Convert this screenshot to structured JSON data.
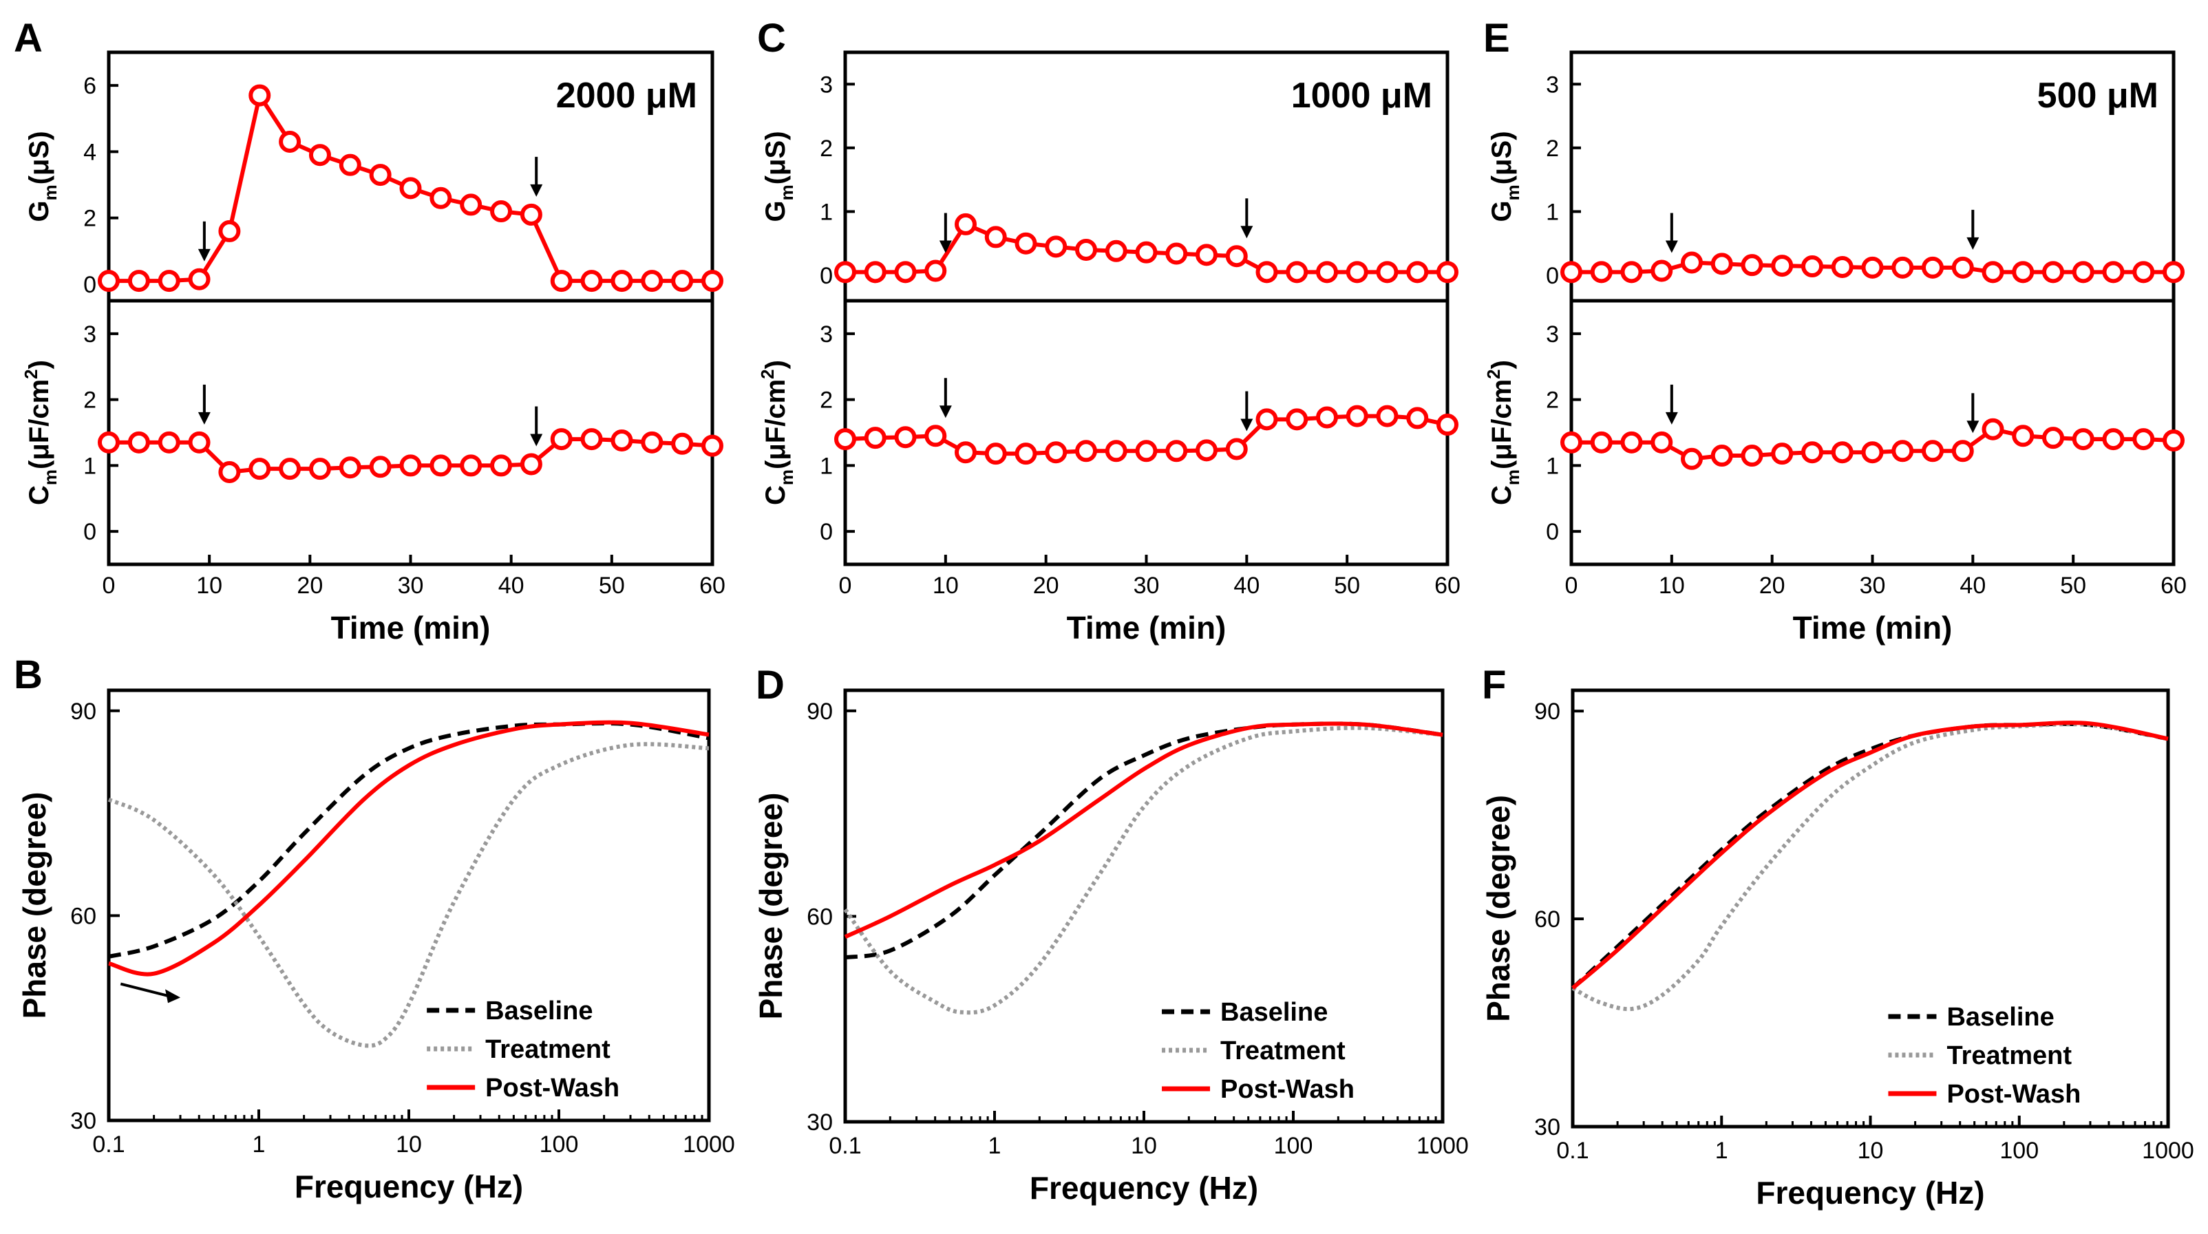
{
  "colors": {
    "post_wash": "#ff0000",
    "baseline": "#000000",
    "treatment": "#999999"
  },
  "chart_data": [
    {
      "panel": "A",
      "type": "line",
      "concentration": "2000 μM",
      "xlabel": "Time (min)",
      "xlim": [
        0,
        60
      ],
      "xticks": [
        "0",
        "10",
        "20",
        "30",
        "40",
        "50",
        "60"
      ],
      "top": {
        "ylabel": "Gm(μS)",
        "ylabel_main": "G",
        "ylabel_sub": "m",
        "ylabel_rest": "(μS)",
        "ylim": [
          -0.5,
          7
        ],
        "yticks": [
          "0",
          "2",
          "4",
          "6"
        ],
        "x": [
          0,
          3,
          6,
          9,
          12,
          15,
          18,
          21,
          24,
          27,
          30,
          33,
          36,
          39,
          42,
          45,
          48,
          51,
          54,
          57,
          60
        ],
        "values": [
          0.1,
          0.1,
          0.1,
          0.15,
          1.6,
          5.7,
          4.3,
          3.9,
          3.6,
          3.3,
          2.9,
          2.6,
          2.4,
          2.2,
          2.1,
          0.1,
          0.1,
          0.1,
          0.1,
          0.1,
          0.1
        ],
        "arrows_at": [
          9.5,
          42.5
        ]
      },
      "bottom": {
        "ylabel": "Cm(μF/cm2)",
        "ylabel_main": "C",
        "ylabel_sub": "m",
        "ylabel_rest": "(μF/cm",
        "ylabel_sup": "2",
        "ylabel_end": ")",
        "ylim": [
          -0.5,
          3.5
        ],
        "yticks": [
          "0",
          "1",
          "2",
          "3"
        ],
        "x": [
          0,
          3,
          6,
          9,
          12,
          15,
          18,
          21,
          24,
          27,
          30,
          33,
          36,
          39,
          42,
          45,
          48,
          51,
          54,
          57,
          60
        ],
        "values": [
          1.35,
          1.35,
          1.35,
          1.35,
          0.9,
          0.95,
          0.95,
          0.95,
          0.97,
          0.98,
          1.0,
          1.0,
          1.0,
          1.0,
          1.02,
          1.4,
          1.4,
          1.38,
          1.35,
          1.33,
          1.3
        ],
        "arrows_at": [
          9.5,
          42.5
        ]
      }
    },
    {
      "panel": "C",
      "type": "line",
      "concentration": "1000 μM",
      "xlabel": "Time (min)",
      "xlim": [
        0,
        60
      ],
      "xticks": [
        "0",
        "10",
        "20",
        "30",
        "40",
        "50",
        "60"
      ],
      "top": {
        "ylabel": "Gm(μS)",
        "ylabel_main": "G",
        "ylabel_sub": "m",
        "ylabel_rest": "(μS)",
        "ylim": [
          -0.4,
          3.5
        ],
        "yticks": [
          "0",
          "1",
          "2",
          "3"
        ],
        "x": [
          0,
          3,
          6,
          9,
          12,
          15,
          18,
          21,
          24,
          27,
          30,
          33,
          36,
          39,
          42,
          45,
          48,
          51,
          54,
          57,
          60
        ],
        "values": [
          0.05,
          0.05,
          0.05,
          0.07,
          0.8,
          0.6,
          0.5,
          0.45,
          0.4,
          0.38,
          0.36,
          0.34,
          0.32,
          0.3,
          0.05,
          0.05,
          0.05,
          0.05,
          0.05,
          0.05,
          0.05
        ],
        "arrows_at": [
          10,
          40
        ]
      },
      "bottom": {
        "ylabel": "Cm(μF/cm2)",
        "ylabel_main": "C",
        "ylabel_sub": "m",
        "ylabel_rest": "(μF/cm",
        "ylabel_sup": "2",
        "ylabel_end": ")",
        "ylim": [
          -0.5,
          3.5
        ],
        "yticks": [
          "0",
          "1",
          "2",
          "3"
        ],
        "x": [
          0,
          3,
          6,
          9,
          12,
          15,
          18,
          21,
          24,
          27,
          30,
          33,
          36,
          39,
          42,
          45,
          48,
          51,
          54,
          57,
          60
        ],
        "values": [
          1.4,
          1.42,
          1.43,
          1.45,
          1.2,
          1.18,
          1.18,
          1.2,
          1.22,
          1.22,
          1.22,
          1.22,
          1.23,
          1.25,
          1.7,
          1.7,
          1.73,
          1.75,
          1.75,
          1.72,
          1.62
        ],
        "arrows_at": [
          10,
          40
        ]
      }
    },
    {
      "panel": "E",
      "type": "line",
      "concentration": "500 μM",
      "xlabel": "Time (min)",
      "xlim": [
        0,
        60
      ],
      "xticks": [
        "0",
        "10",
        "20",
        "30",
        "40",
        "50",
        "60"
      ],
      "top": {
        "ylabel": "Gm(μS)",
        "ylabel_main": "G",
        "ylabel_sub": "m",
        "ylabel_rest": "(μS)",
        "ylim": [
          -0.4,
          3.5
        ],
        "yticks": [
          "0",
          "1",
          "2",
          "3"
        ],
        "x": [
          0,
          3,
          6,
          9,
          12,
          15,
          18,
          21,
          24,
          27,
          30,
          33,
          36,
          39,
          42,
          45,
          48,
          51,
          54,
          57,
          60
        ],
        "values": [
          0.05,
          0.05,
          0.05,
          0.07,
          0.2,
          0.18,
          0.16,
          0.15,
          0.14,
          0.13,
          0.12,
          0.12,
          0.12,
          0.12,
          0.05,
          0.05,
          0.05,
          0.05,
          0.05,
          0.05,
          0.05
        ],
        "arrows_at": [
          10,
          40
        ]
      },
      "bottom": {
        "ylabel": "Cm(μF/cm2)",
        "ylabel_main": "C",
        "ylabel_sub": "m",
        "ylabel_rest": "(μF/cm",
        "ylabel_sup": "2",
        "ylabel_end": ")",
        "ylim": [
          -0.5,
          3.5
        ],
        "yticks": [
          "0",
          "1",
          "2",
          "3"
        ],
        "x": [
          0,
          3,
          6,
          9,
          12,
          15,
          18,
          21,
          24,
          27,
          30,
          33,
          36,
          39,
          42,
          45,
          48,
          51,
          54,
          57,
          60
        ],
        "values": [
          1.35,
          1.35,
          1.35,
          1.35,
          1.1,
          1.15,
          1.15,
          1.18,
          1.2,
          1.2,
          1.2,
          1.22,
          1.22,
          1.22,
          1.55,
          1.45,
          1.42,
          1.4,
          1.4,
          1.4,
          1.38
        ],
        "arrows_at": [
          10,
          40
        ]
      }
    },
    {
      "panel": "B",
      "type": "line",
      "xscale": "log",
      "xlabel": "Frequency (Hz)",
      "ylabel": "Phase (degree)",
      "xlim": [
        0.1,
        1000
      ],
      "ylim": [
        30,
        93
      ],
      "xticks": [
        "0.1",
        "1",
        "10",
        "100",
        "1000"
      ],
      "yticks": [
        "30",
        "60",
        "90"
      ],
      "legend": [
        "Baseline",
        "Treatment",
        "Post-Wash"
      ],
      "series": [
        {
          "name": "Baseline",
          "style": "dashed",
          "x": [
            0.1,
            0.2,
            0.5,
            1,
            2,
            5,
            10,
            20,
            50,
            100,
            300,
            1000
          ],
          "values": [
            54,
            55.5,
            59.5,
            65,
            72,
            80.5,
            84.5,
            86.5,
            87.8,
            88,
            88,
            86
          ]
        },
        {
          "name": "Treatment",
          "style": "dotted",
          "x": [
            0.1,
            0.2,
            0.5,
            1,
            2,
            3,
            5,
            7,
            10,
            20,
            50,
            100,
            300,
            1000
          ],
          "values": [
            77,
            74,
            66,
            57,
            47,
            43,
            41,
            42,
            47,
            62,
            77,
            82,
            85,
            84.5
          ]
        },
        {
          "name": "Post-Wash",
          "style": "solid",
          "x": [
            0.1,
            0.2,
            0.5,
            1,
            2,
            5,
            10,
            20,
            50,
            100,
            300,
            1000
          ],
          "values": [
            53,
            51.5,
            56,
            61.5,
            68,
            77,
            82,
            85,
            87.3,
            88,
            88.2,
            86.5
          ]
        }
      ],
      "arrow": {
        "from": [
          0.12,
          50
        ],
        "to": [
          0.3,
          48
        ]
      }
    },
    {
      "panel": "D",
      "type": "line",
      "xscale": "log",
      "xlabel": "Frequency (Hz)",
      "ylabel": "Phase (degree)",
      "xlim": [
        0.1,
        1000
      ],
      "ylim": [
        30,
        93
      ],
      "xticks": [
        "0.1",
        "1",
        "10",
        "100",
        "1000"
      ],
      "yticks": [
        "30",
        "60",
        "90"
      ],
      "legend": [
        "Baseline",
        "Treatment",
        "Post-Wash"
      ],
      "series": [
        {
          "name": "Baseline",
          "style": "dashed",
          "x": [
            0.1,
            0.2,
            0.5,
            1,
            2,
            5,
            10,
            20,
            50,
            100,
            300,
            1000
          ],
          "values": [
            54,
            55,
            60,
            66,
            72,
            80,
            83.5,
            86,
            87.5,
            88,
            88,
            86.5
          ]
        },
        {
          "name": "Treatment",
          "style": "dotted",
          "x": [
            0.1,
            0.2,
            0.4,
            0.6,
            1,
            2,
            5,
            10,
            20,
            50,
            100,
            300,
            1000
          ],
          "values": [
            61,
            52,
            47.5,
            46,
            47,
            53,
            66,
            76,
            82,
            86,
            87,
            87.5,
            86.5
          ]
        },
        {
          "name": "Post-Wash",
          "style": "solid",
          "x": [
            0.1,
            0.2,
            0.5,
            1,
            2,
            5,
            10,
            20,
            50,
            100,
            300,
            1000
          ],
          "values": [
            57,
            60,
            64.5,
            67.5,
            71,
            77,
            81.5,
            85,
            87.5,
            88,
            88,
            86.5
          ]
        }
      ]
    },
    {
      "panel": "F",
      "type": "line",
      "xscale": "log",
      "xlabel": "Frequency (Hz)",
      "ylabel": "Phase (degree)",
      "xlim": [
        0.1,
        1000
      ],
      "ylim": [
        30,
        93
      ],
      "xticks": [
        "0.1",
        "1",
        "10",
        "100",
        "1000"
      ],
      "yticks": [
        "30",
        "60",
        "90"
      ],
      "legend": [
        "Baseline",
        "Treatment",
        "Post-Wash"
      ],
      "series": [
        {
          "name": "Baseline",
          "style": "dashed",
          "x": [
            0.1,
            0.2,
            0.5,
            1,
            2,
            5,
            10,
            20,
            50,
            100,
            300,
            1000
          ],
          "values": [
            50,
            56,
            64,
            70,
            75.5,
            81.5,
            84.5,
            86.5,
            87.8,
            88,
            88,
            86
          ]
        },
        {
          "name": "Treatment",
          "style": "dotted",
          "x": [
            0.1,
            0.15,
            0.25,
            0.4,
            0.7,
            1,
            2,
            5,
            10,
            20,
            50,
            100,
            300,
            1000
          ],
          "values": [
            50,
            48,
            47,
            49,
            54,
            59,
            67.5,
            77,
            82,
            85.5,
            87.3,
            87.8,
            88,
            86
          ]
        },
        {
          "name": "Post-Wash",
          "style": "solid",
          "x": [
            0.1,
            0.2,
            0.5,
            1,
            2,
            5,
            10,
            20,
            50,
            100,
            300,
            1000
          ],
          "values": [
            50,
            55.5,
            63.5,
            69.5,
            75,
            81,
            84,
            86.5,
            87.8,
            88,
            88.2,
            86
          ]
        }
      ]
    }
  ]
}
